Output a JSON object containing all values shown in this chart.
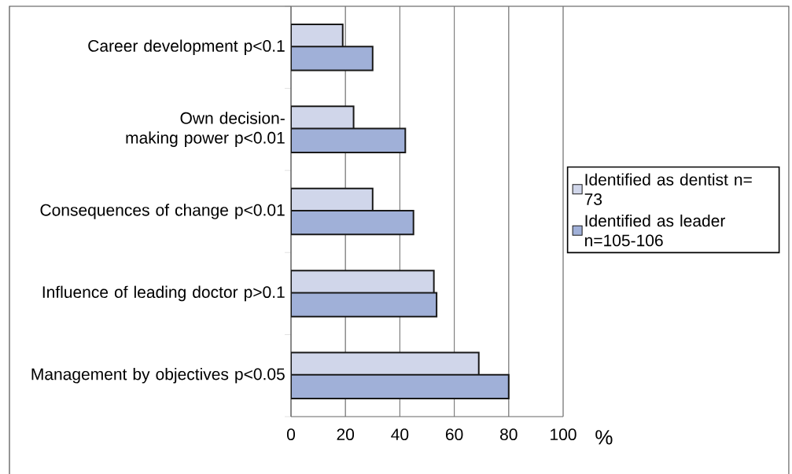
{
  "chart_data": {
    "type": "bar",
    "orientation": "horizontal",
    "categories": [
      "Career development p<0.1",
      "Own decision-making power p<0.01",
      "Consequences of change p<0.01",
      "Influence of leading doctor p>0.1",
      "Management by objectives p<0.05"
    ],
    "series": [
      {
        "name": "Identified as dentist n= 73",
        "color": "#d0d6ea",
        "values": [
          19,
          23,
          30,
          52.5,
          69
        ]
      },
      {
        "name": "Identified as leader n=105-106",
        "color": "#a0b0d8",
        "values": [
          30,
          42,
          45,
          53.5,
          80
        ]
      }
    ],
    "xlabel": "%",
    "xlim": [
      0,
      100
    ],
    "xticks": [
      0,
      20,
      40,
      60,
      80,
      100
    ],
    "grid": "x",
    "legend": "right"
  }
}
